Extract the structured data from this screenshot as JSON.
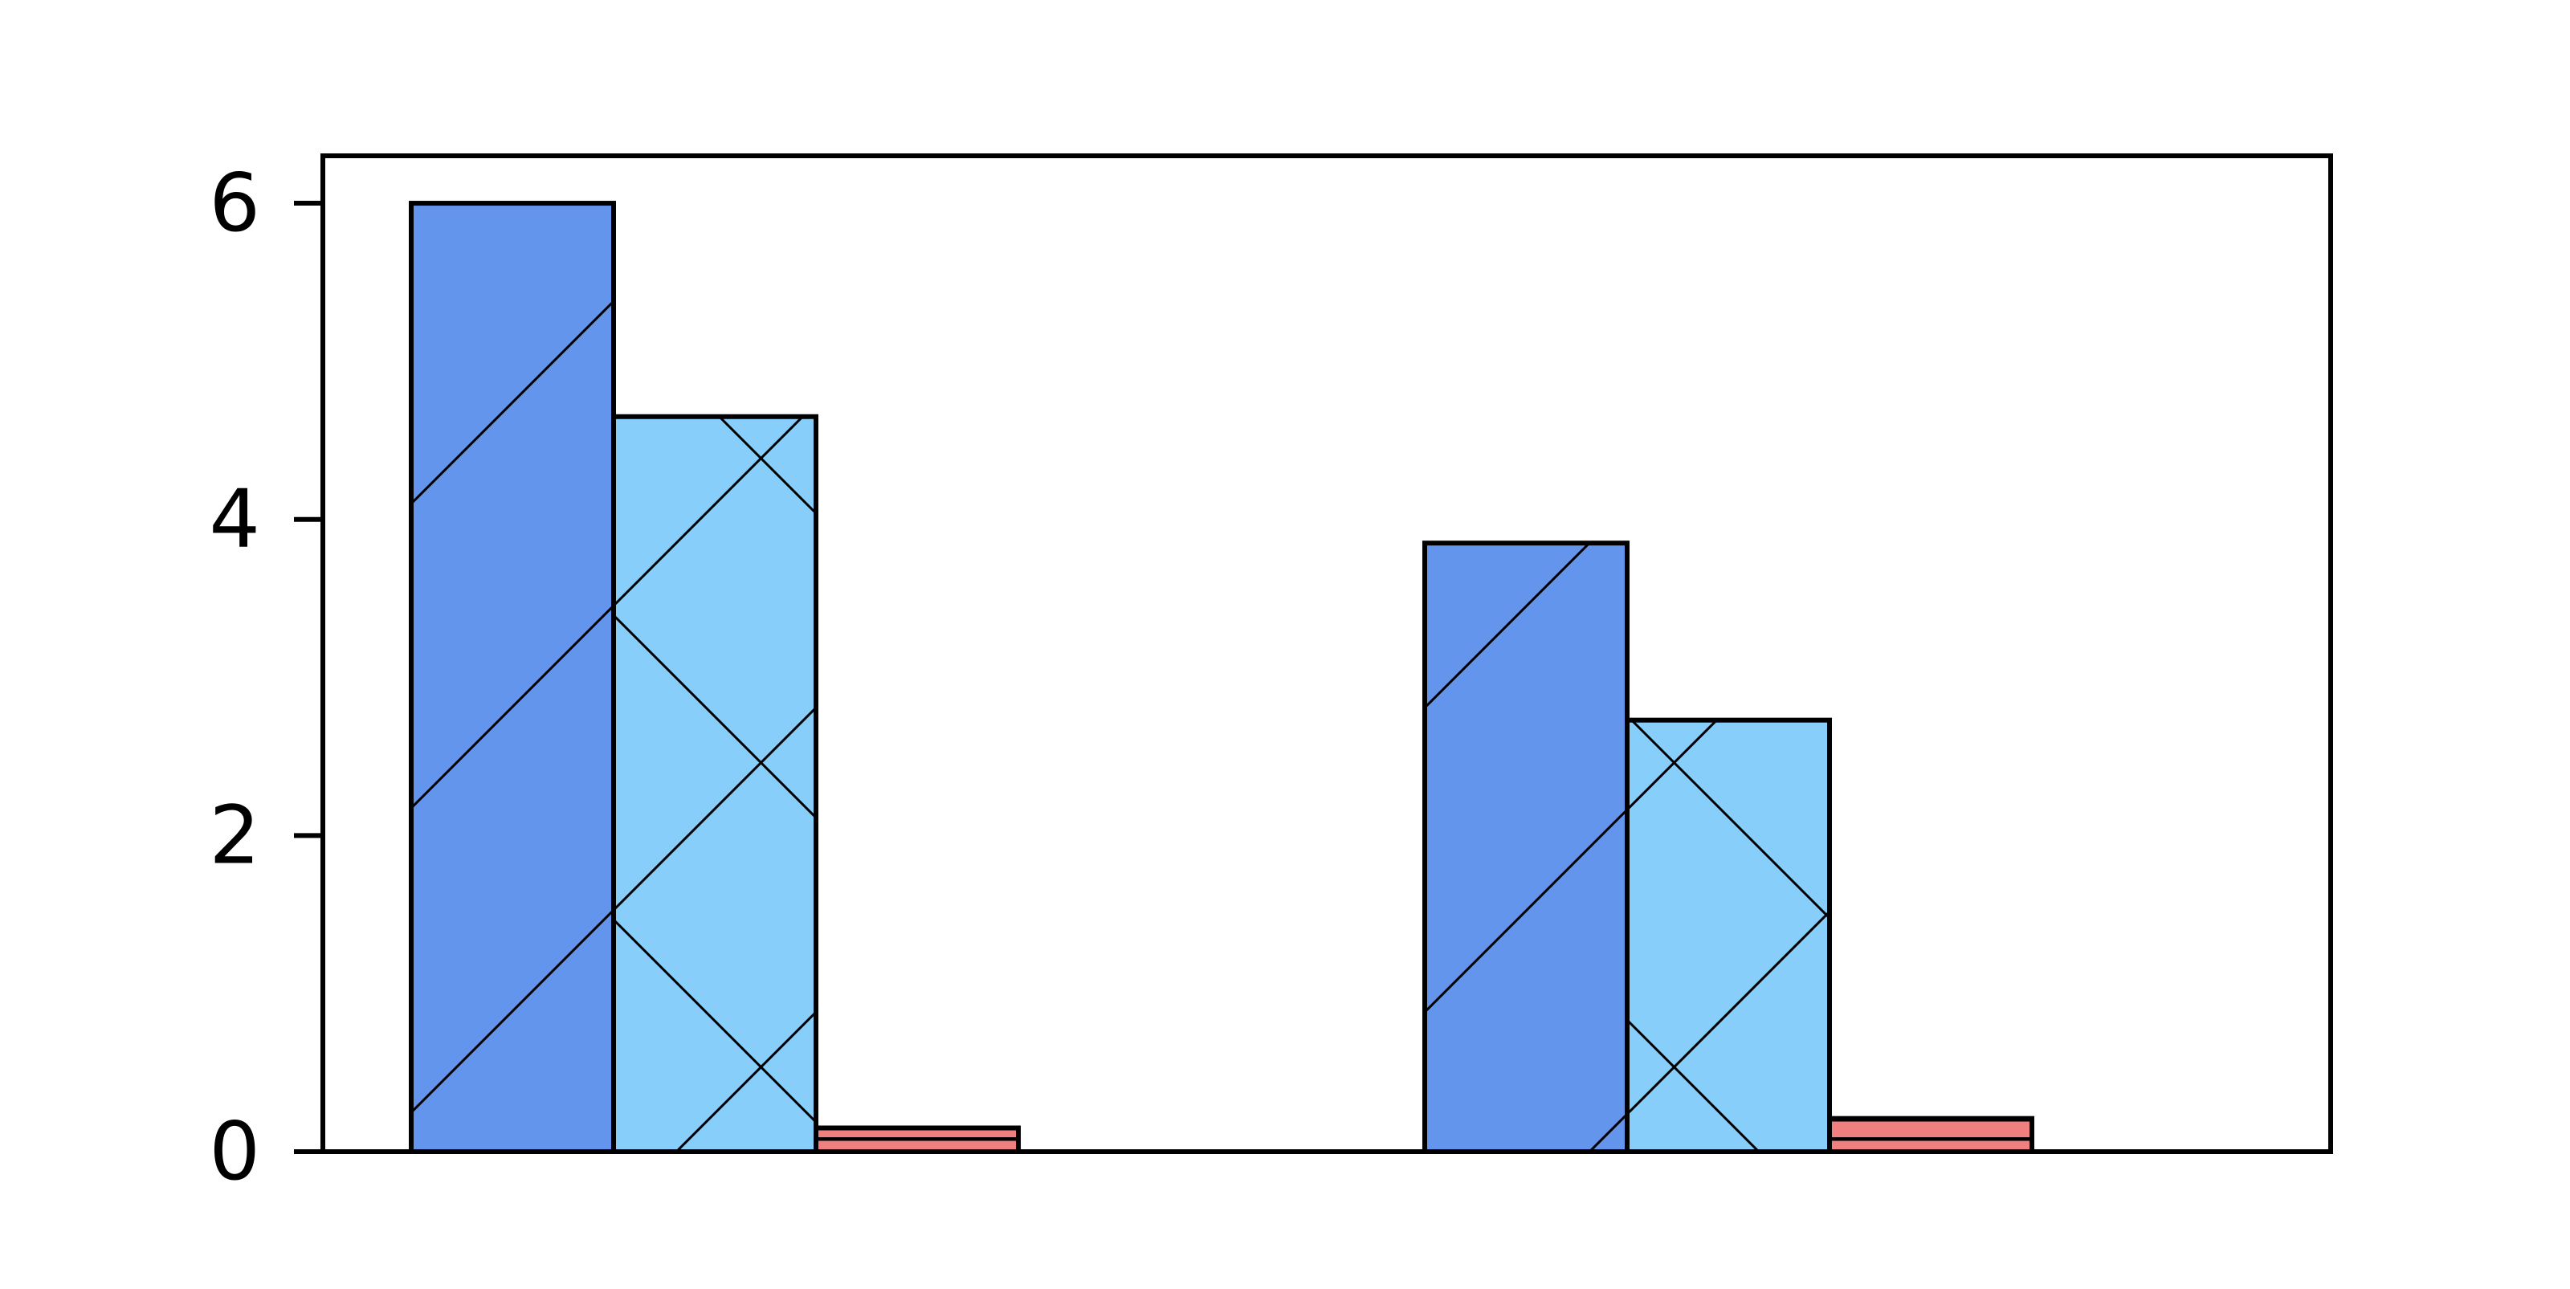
{
  "chart_data": {
    "type": "bar",
    "title": "",
    "xlabel": "",
    "ylabel": "",
    "categories": [
      "",
      ""
    ],
    "ylim": [
      0,
      6.3
    ],
    "yticks": [
      0,
      2,
      4,
      6
    ],
    "grid": false,
    "legend": "none",
    "series": [
      {
        "color": "#6495ED",
        "hatch": "diagonal",
        "values": [
          6.0,
          3.85
        ]
      },
      {
        "color": "#87CEFA",
        "hatch": "crosshatch",
        "values": [
          4.65,
          2.73
        ]
      },
      {
        "color": "#F08080",
        "hatch": "horizontal",
        "values": [
          0.15,
          0.21
        ]
      },
      {
        "color": "#FFFFFF",
        "hatch": "none",
        "values": [
          0.0,
          0.0
        ]
      }
    ]
  }
}
